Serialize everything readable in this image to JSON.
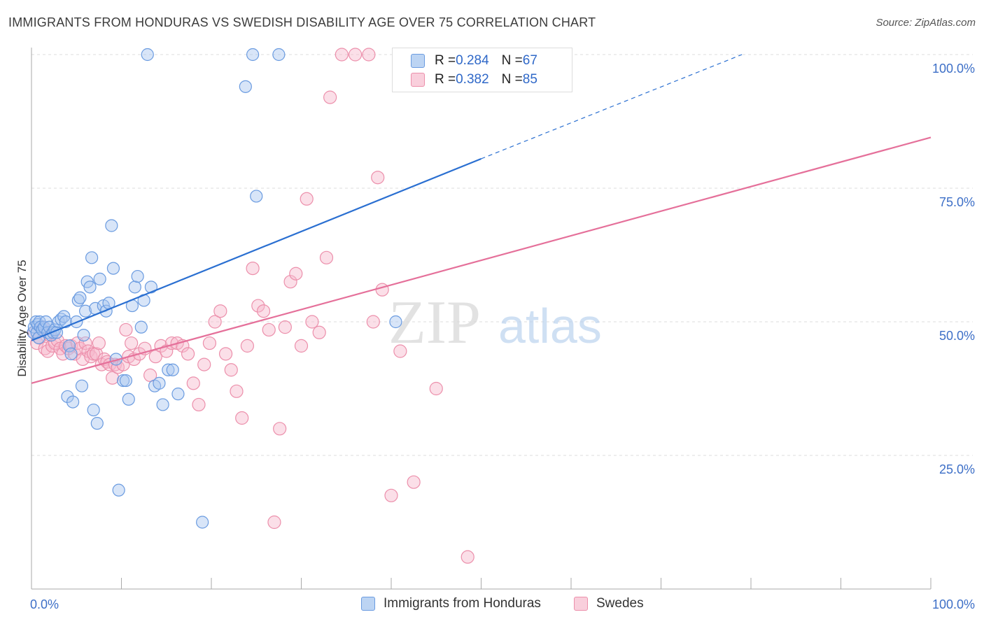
{
  "title": "IMMIGRANTS FROM HONDURAS VS SWEDISH DISABILITY AGE OVER 75 CORRELATION CHART",
  "source": "Source: ZipAtlas.com",
  "watermark": {
    "zip": "ZIP",
    "atlas": "atlas"
  },
  "legend": {
    "series1": {
      "r_label": "R = ",
      "r_value": "0.284",
      "n_label": "N = ",
      "n_value": "67"
    },
    "series2": {
      "r_label": "R = ",
      "r_value": "0.382",
      "n_label": "N = ",
      "n_value": "85"
    }
  },
  "bottom_legend": {
    "series1": "Immigrants from Honduras",
    "series2": "Swedes"
  },
  "colors": {
    "blue_fill": "#a9c6ef",
    "blue_stroke": "#6a9be0",
    "blue_line": "#2a6fd1",
    "pink_fill": "#f6b8cb",
    "pink_stroke": "#ec8fab",
    "pink_line": "#e5709a",
    "tick_text": "#3d6fc7",
    "grid": "#dddddd"
  },
  "chart_data": {
    "type": "scatter",
    "title": "IMMIGRANTS FROM HONDURAS VS SWEDISH DISABILITY AGE OVER 75 CORRELATION CHART",
    "xlabel": "",
    "ylabel": "Disability Age Over 75",
    "xlim": [
      0,
      100
    ],
    "ylim": [
      0,
      100
    ],
    "x_tick_labels": [
      "0.0%",
      "100.0%"
    ],
    "y_ticks": [
      25,
      50,
      75,
      100
    ],
    "y_tick_labels": [
      "25.0%",
      "50.0%",
      "75.0%",
      "100.0%"
    ],
    "grid": true,
    "legend_position": "top-center",
    "series": [
      {
        "name": "Immigrants from Honduras",
        "color": "#6a9be0",
        "trend": {
          "x0": 0,
          "y0": 46.5,
          "x1": 50,
          "y1": 80.5,
          "dashed_to_x": 79,
          "dashed_to_y": 100
        },
        "points": [
          [
            0.2,
            48
          ],
          [
            0.3,
            49
          ],
          [
            0.5,
            50
          ],
          [
            0.6,
            48
          ],
          [
            0.7,
            49.5
          ],
          [
            0.8,
            47
          ],
          [
            0.9,
            50
          ],
          [
            1.0,
            49
          ],
          [
            1.2,
            48.5
          ],
          [
            1.4,
            49
          ],
          [
            1.6,
            50
          ],
          [
            1.8,
            48
          ],
          [
            2.0,
            49
          ],
          [
            2.2,
            47.5
          ],
          [
            2.4,
            48
          ],
          [
            2.6,
            48.5
          ],
          [
            2.8,
            48
          ],
          [
            3.0,
            50
          ],
          [
            3.3,
            50.5
          ],
          [
            3.6,
            51
          ],
          [
            3.8,
            50
          ],
          [
            4.0,
            36
          ],
          [
            4.2,
            45.5
          ],
          [
            4.4,
            44
          ],
          [
            4.6,
            35
          ],
          [
            5.0,
            50
          ],
          [
            5.2,
            54
          ],
          [
            5.4,
            54.5
          ],
          [
            5.6,
            38
          ],
          [
            5.8,
            47.5
          ],
          [
            6.0,
            52
          ],
          [
            6.2,
            57.5
          ],
          [
            6.5,
            56.5
          ],
          [
            6.7,
            62
          ],
          [
            6.9,
            33.5
          ],
          [
            7.1,
            52.5
          ],
          [
            7.3,
            31
          ],
          [
            7.6,
            58
          ],
          [
            8.0,
            53
          ],
          [
            8.3,
            52
          ],
          [
            8.6,
            53.5
          ],
          [
            8.9,
            68
          ],
          [
            9.1,
            60
          ],
          [
            9.4,
            43
          ],
          [
            9.7,
            18.5
          ],
          [
            10.2,
            39
          ],
          [
            10.5,
            39
          ],
          [
            10.8,
            35.5
          ],
          [
            11.2,
            53
          ],
          [
            11.5,
            56.5
          ],
          [
            11.8,
            58.5
          ],
          [
            12.2,
            49
          ],
          [
            12.5,
            54
          ],
          [
            12.9,
            100
          ],
          [
            13.3,
            56.5
          ],
          [
            13.7,
            38
          ],
          [
            14.2,
            38.5
          ],
          [
            14.6,
            34.5
          ],
          [
            15.2,
            41
          ],
          [
            15.7,
            41
          ],
          [
            16.3,
            36.5
          ],
          [
            19.0,
            12.5
          ],
          [
            23.8,
            94
          ],
          [
            24.6,
            100
          ],
          [
            25.0,
            73.5
          ],
          [
            27.5,
            100
          ],
          [
            40.5,
            50
          ]
        ]
      },
      {
        "name": "Swedes",
        "color": "#ec8fab",
        "trend": {
          "x0": 0,
          "y0": 38.5,
          "x1": 100,
          "y1": 84.5
        },
        "points": [
          [
            0.3,
            48
          ],
          [
            0.6,
            46
          ],
          [
            0.9,
            47
          ],
          [
            1.2,
            49
          ],
          [
            1.5,
            45
          ],
          [
            1.8,
            44.5
          ],
          [
            2.0,
            47.5
          ],
          [
            2.3,
            45.5
          ],
          [
            2.6,
            46
          ],
          [
            2.9,
            46.5
          ],
          [
            3.2,
            45
          ],
          [
            3.5,
            44
          ],
          [
            3.8,
            45.5
          ],
          [
            4.1,
            45
          ],
          [
            4.4,
            45.5
          ],
          [
            4.8,
            44
          ],
          [
            5.1,
            46
          ],
          [
            5.4,
            45
          ],
          [
            5.7,
            43
          ],
          [
            6.0,
            46
          ],
          [
            6.3,
            44.5
          ],
          [
            6.6,
            43.5
          ],
          [
            6.9,
            44
          ],
          [
            7.2,
            44
          ],
          [
            7.5,
            46
          ],
          [
            7.8,
            42
          ],
          [
            8.1,
            43
          ],
          [
            8.4,
            42.5
          ],
          [
            8.7,
            42
          ],
          [
            9.0,
            39.5
          ],
          [
            9.3,
            42
          ],
          [
            9.6,
            41.5
          ],
          [
            10.2,
            42
          ],
          [
            10.5,
            48.5
          ],
          [
            10.8,
            43.5
          ],
          [
            11.1,
            46
          ],
          [
            11.4,
            43
          ],
          [
            12.0,
            44
          ],
          [
            12.6,
            45
          ],
          [
            13.2,
            40
          ],
          [
            13.8,
            43.5
          ],
          [
            14.4,
            45.5
          ],
          [
            15.0,
            44.5
          ],
          [
            15.6,
            46
          ],
          [
            16.2,
            46
          ],
          [
            16.8,
            45.5
          ],
          [
            17.4,
            44
          ],
          [
            18.0,
            38.5
          ],
          [
            18.6,
            34.5
          ],
          [
            19.2,
            42
          ],
          [
            19.8,
            46
          ],
          [
            20.4,
            50
          ],
          [
            21.0,
            52
          ],
          [
            21.6,
            44
          ],
          [
            22.2,
            41
          ],
          [
            22.8,
            37
          ],
          [
            23.4,
            32
          ],
          [
            24.0,
            45.5
          ],
          [
            24.6,
            60
          ],
          [
            25.2,
            53
          ],
          [
            25.8,
            52
          ],
          [
            26.4,
            48.5
          ],
          [
            27.0,
            12.5
          ],
          [
            27.6,
            30
          ],
          [
            28.2,
            49
          ],
          [
            28.8,
            57.5
          ],
          [
            29.4,
            59
          ],
          [
            30.0,
            45.5
          ],
          [
            30.6,
            73
          ],
          [
            31.2,
            50
          ],
          [
            32.0,
            48
          ],
          [
            32.8,
            62
          ],
          [
            33.2,
            92
          ],
          [
            34.5,
            100
          ],
          [
            36.0,
            100
          ],
          [
            37.5,
            100
          ],
          [
            38.0,
            50
          ],
          [
            38.5,
            77
          ],
          [
            39.0,
            56
          ],
          [
            40.0,
            17.5
          ],
          [
            41.0,
            44.5
          ],
          [
            42.5,
            20
          ],
          [
            45.0,
            37.5
          ],
          [
            46.2,
            100
          ],
          [
            48.5,
            6
          ]
        ]
      }
    ]
  }
}
